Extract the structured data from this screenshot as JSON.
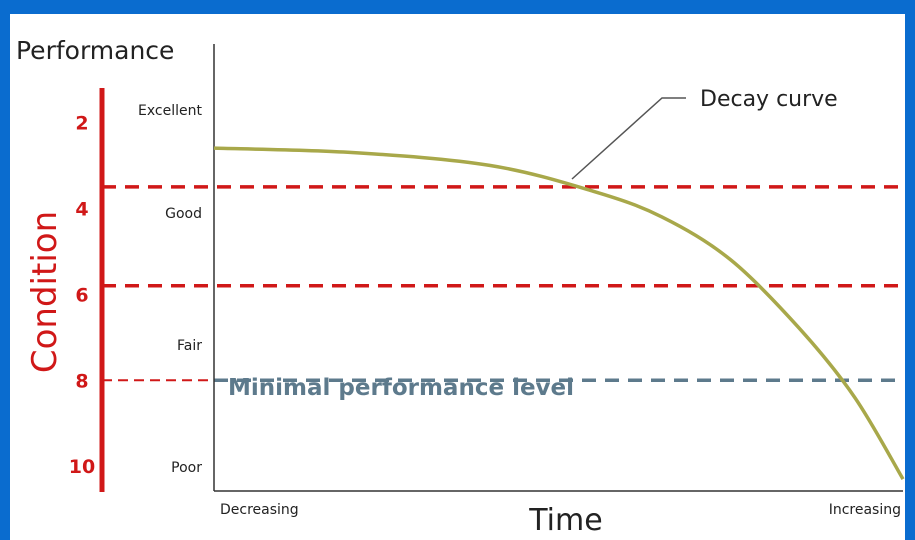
{
  "chart_data": {
    "type": "line",
    "ylabel": "Performance",
    "xlabel": "Time",
    "x_ends": [
      "Decreasing",
      "Increasing"
    ],
    "performance_levels": [
      "Excellent",
      "Good",
      "Fair",
      "Poor"
    ],
    "condition_axis": {
      "title": "Condition",
      "ticks": [
        2,
        4,
        6,
        8,
        10
      ],
      "range": [
        1.2,
        10.6
      ],
      "color": "#d01818"
    },
    "x_range": [
      0,
      1
    ],
    "thresholds": [
      {
        "condition": 3.5,
        "color": "#d01818",
        "style": "dashed"
      },
      {
        "condition": 5.8,
        "color": "#d01818",
        "style": "dashed"
      },
      {
        "condition": 8.0,
        "color": "#5d7a8c",
        "style": "dashed",
        "label": "Minimal performance level"
      }
    ],
    "series": [
      {
        "name": "Decay curve",
        "color": "#a8a84a",
        "points": [
          [
            0.0,
            2.6
          ],
          [
            0.2,
            2.7
          ],
          [
            0.4,
            3.0
          ],
          [
            0.55,
            3.6
          ],
          [
            0.65,
            4.2
          ],
          [
            0.75,
            5.2
          ],
          [
            0.85,
            6.8
          ],
          [
            0.93,
            8.4
          ],
          [
            1.0,
            10.3
          ]
        ]
      }
    ],
    "annotations": [
      "Decay curve"
    ],
    "grid": false,
    "background": "#0a6ccf"
  }
}
